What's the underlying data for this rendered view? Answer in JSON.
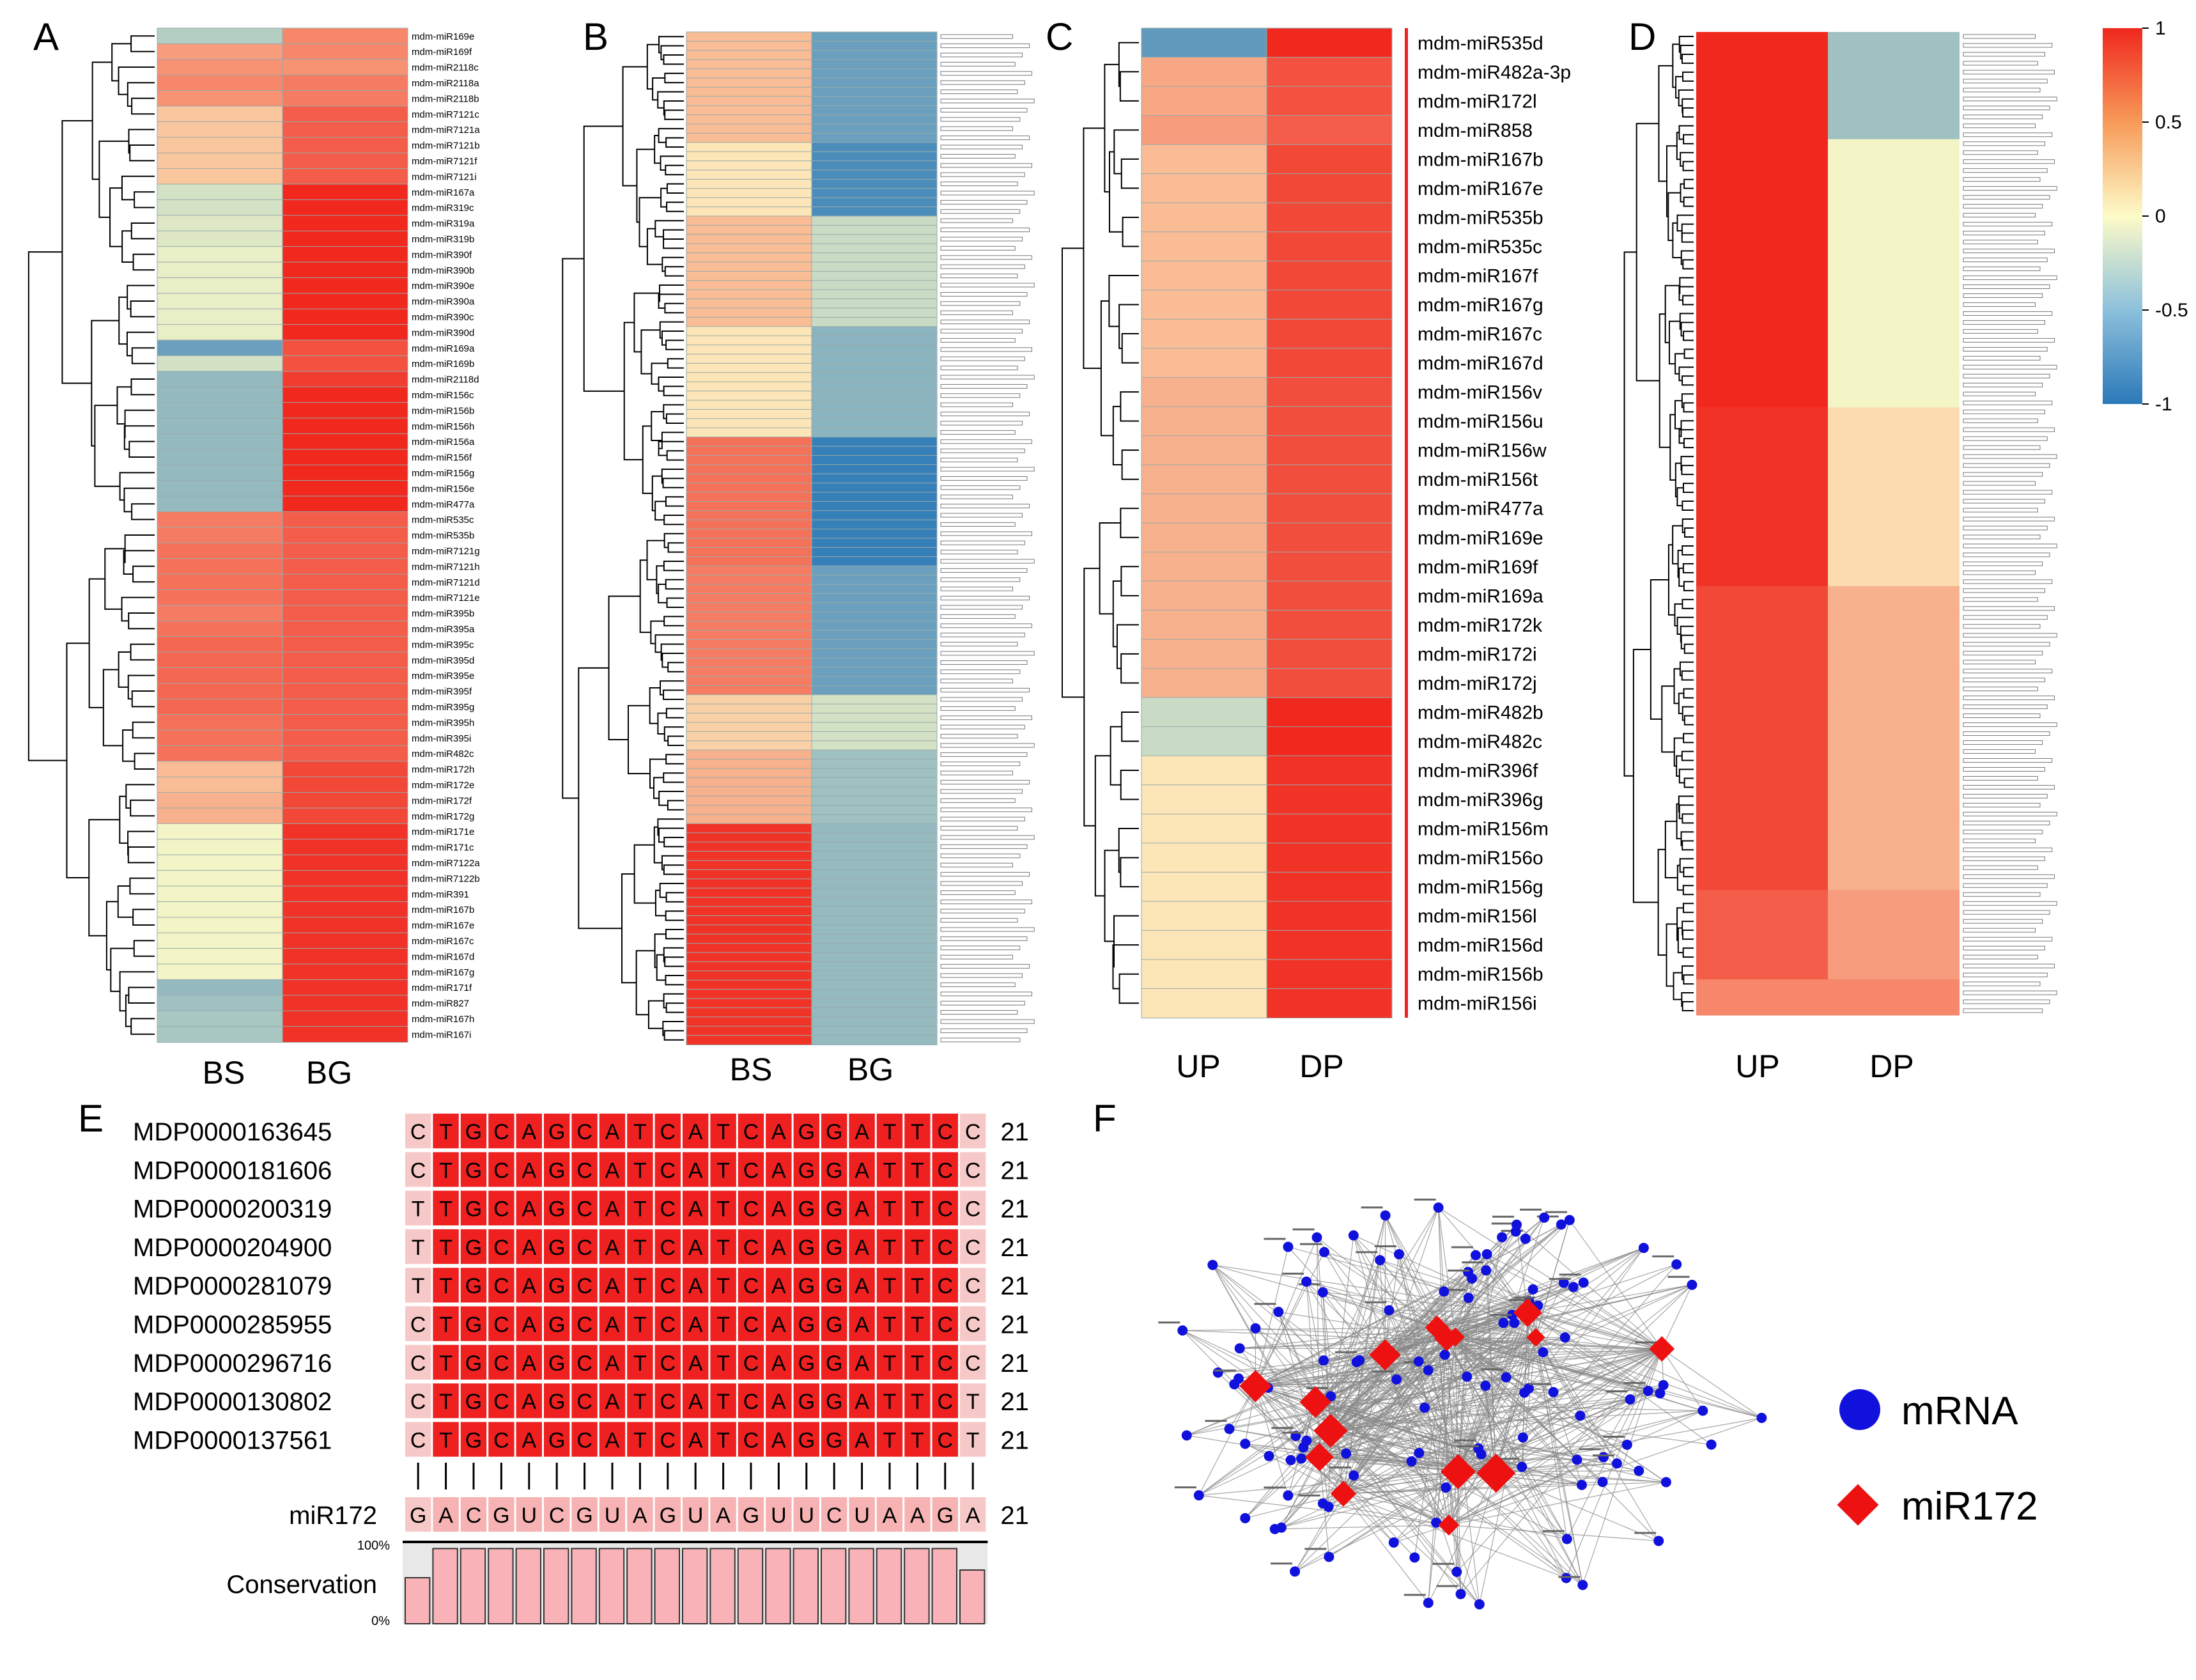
{
  "colors": {
    "scale_low": "#2b79b8",
    "scale_mid": "#fdfbc8",
    "scale_high": "#f0281e",
    "mrna_node": "#1111dd",
    "mir_node": "#ee1111",
    "edge": "#888888",
    "align_dark": "#ee2020",
    "align_light": "#f7c8c8"
  },
  "panels": {
    "A": {
      "letter": "A"
    },
    "B": {
      "letter": "B"
    },
    "C": {
      "letter": "C"
    },
    "D": {
      "letter": "D"
    },
    "E": {
      "letter": "E"
    },
    "F": {
      "letter": "F"
    }
  },
  "chart_data": [
    {
      "id": "A",
      "type": "heatmap",
      "columns": [
        "BS",
        "BG"
      ],
      "rows": [
        "mdm-miR169e",
        "mdm-miR169f",
        "mdm-miR2118c",
        "mdm-miR2118a",
        "mdm-miR2118b",
        "mdm-miR7121c",
        "mdm-miR7121a",
        "mdm-miR7121b",
        "mdm-miR7121f",
        "mdm-miR7121i",
        "mdm-miR167a",
        "mdm-miR319c",
        "mdm-miR319a",
        "mdm-miR319b",
        "mdm-miR390f",
        "mdm-miR390b",
        "mdm-miR390e",
        "mdm-miR390a",
        "mdm-miR390c",
        "mdm-miR390d",
        "mdm-miR169a",
        "mdm-miR169b",
        "mdm-miR2118d",
        "mdm-miR156c",
        "mdm-miR156b",
        "mdm-miR156h",
        "mdm-miR156a",
        "mdm-miR156f",
        "mdm-miR156g",
        "mdm-miR156e",
        "mdm-miR477a",
        "mdm-miR535c",
        "mdm-miR535b",
        "mdm-miR7121g",
        "mdm-miR7121h",
        "mdm-miR7121d",
        "mdm-miR7121e",
        "mdm-miR395b",
        "mdm-miR395a",
        "mdm-miR395c",
        "mdm-miR395d",
        "mdm-miR395e",
        "mdm-miR395f",
        "mdm-miR395g",
        "mdm-miR395h",
        "mdm-miR395i",
        "mdm-miR482c",
        "mdm-miR172h",
        "mdm-miR172e",
        "mdm-miR172f",
        "mdm-miR172g",
        "mdm-miR171e",
        "mdm-miR171c",
        "mdm-miR7122a",
        "mdm-miR7122b",
        "mdm-miR391",
        "mdm-miR167b",
        "mdm-miR167e",
        "mdm-miR167c",
        "mdm-miR167d",
        "mdm-miR167g",
        "mdm-miR171f",
        "mdm-miR827",
        "mdm-miR167h",
        "mdm-miR167i"
      ],
      "BS": [
        -0.35,
        0.45,
        0.5,
        0.55,
        0.5,
        0.25,
        0.25,
        0.25,
        0.25,
        0.25,
        -0.2,
        -0.2,
        -0.15,
        -0.15,
        -0.1,
        -0.1,
        -0.1,
        -0.1,
        -0.1,
        -0.1,
        -0.7,
        -0.2,
        -0.5,
        -0.5,
        -0.5,
        -0.5,
        -0.5,
        -0.5,
        -0.5,
        -0.5,
        -0.5,
        0.6,
        0.6,
        0.65,
        0.65,
        0.65,
        0.65,
        0.6,
        0.65,
        0.7,
        0.7,
        0.7,
        0.7,
        0.7,
        0.65,
        0.65,
        0.65,
        0.3,
        0.3,
        0.35,
        0.35,
        -0.05,
        -0.05,
        -0.05,
        -0.05,
        -0.05,
        -0.05,
        -0.05,
        -0.05,
        -0.05,
        -0.05,
        -0.5,
        -0.45,
        -0.4,
        -0.4
      ],
      "BG": [
        0.55,
        0.55,
        0.5,
        0.6,
        0.6,
        0.75,
        0.75,
        0.75,
        0.75,
        0.75,
        1.0,
        1.0,
        1.0,
        1.0,
        1.0,
        1.0,
        1.0,
        1.0,
        1.0,
        1.0,
        0.8,
        0.8,
        0.9,
        1.0,
        1.0,
        1.0,
        1.0,
        1.0,
        1.0,
        1.0,
        1.0,
        0.75,
        0.75,
        0.75,
        0.75,
        0.75,
        0.75,
        0.75,
        0.75,
        0.75,
        0.75,
        0.75,
        0.75,
        0.75,
        0.75,
        0.75,
        0.75,
        0.85,
        0.85,
        0.85,
        0.85,
        0.95,
        0.95,
        0.95,
        0.95,
        0.95,
        0.95,
        0.95,
        0.95,
        0.95,
        0.95,
        0.95,
        0.95,
        0.95,
        0.95
      ]
    },
    {
      "id": "B",
      "type": "heatmap",
      "columns": [
        "BS",
        "BG"
      ],
      "row_count": 110,
      "BS_segments": [
        [
          12,
          0.3
        ],
        [
          8,
          0.1
        ],
        [
          12,
          0.3
        ],
        [
          12,
          0.1
        ],
        [
          14,
          0.65
        ],
        [
          14,
          0.6
        ],
        [
          6,
          0.2
        ],
        [
          8,
          0.35
        ],
        [
          24,
          0.95
        ]
      ],
      "BG_segments": [
        [
          12,
          -0.7
        ],
        [
          8,
          -0.85
        ],
        [
          12,
          -0.25
        ],
        [
          12,
          -0.55
        ],
        [
          14,
          -0.95
        ],
        [
          14,
          -0.7
        ],
        [
          6,
          -0.2
        ],
        [
          8,
          -0.45
        ],
        [
          24,
          -0.5
        ]
      ]
    },
    {
      "id": "C",
      "type": "heatmap",
      "columns": [
        "UP",
        "DP"
      ],
      "rows": [
        "mdm-miR535d",
        "mdm-miR482a-3p",
        "mdm-miR172l",
        "mdm-miR858",
        "mdm-miR167b",
        "mdm-miR167e",
        "mdm-miR535b",
        "mdm-miR535c",
        "mdm-miR167f",
        "mdm-miR167g",
        "mdm-miR167c",
        "mdm-miR167d",
        "mdm-miR156v",
        "mdm-miR156u",
        "mdm-miR156w",
        "mdm-miR156t",
        "mdm-miR477a",
        "mdm-miR169e",
        "mdm-miR169f",
        "mdm-miR169a",
        "mdm-miR172k",
        "mdm-miR172i",
        "mdm-miR172j",
        "mdm-miR482b",
        "mdm-miR482c",
        "mdm-miR396f",
        "mdm-miR396g",
        "mdm-miR156m",
        "mdm-miR156o",
        "mdm-miR156g",
        "mdm-miR156l",
        "mdm-miR156d",
        "mdm-miR156b",
        "mdm-miR156i"
      ],
      "UP": [
        -0.75,
        0.4,
        0.4,
        0.45,
        0.3,
        0.3,
        0.3,
        0.3,
        0.3,
        0.3,
        0.3,
        0.3,
        0.35,
        0.35,
        0.35,
        0.35,
        0.35,
        0.35,
        0.35,
        0.35,
        0.35,
        0.35,
        0.35,
        -0.25,
        -0.25,
        0.1,
        0.1,
        0.1,
        0.1,
        0.1,
        0.1,
        0.1,
        0.1,
        0.1
      ],
      "DP": [
        1.0,
        0.8,
        0.8,
        0.75,
        0.85,
        0.85,
        0.85,
        0.85,
        0.85,
        0.85,
        0.85,
        0.85,
        0.82,
        0.82,
        0.82,
        0.82,
        0.82,
        0.82,
        0.82,
        0.82,
        0.82,
        0.82,
        0.82,
        1.0,
        1.0,
        0.95,
        0.95,
        0.95,
        0.95,
        0.95,
        0.95,
        0.95,
        0.95,
        0.95
      ]
    },
    {
      "id": "D",
      "type": "heatmap",
      "columns": [
        "UP",
        "DP"
      ],
      "row_count": 110,
      "UP_segments": [
        [
          12,
          1.0
        ],
        [
          30,
          1.0
        ],
        [
          20,
          0.95
        ],
        [
          34,
          0.85
        ],
        [
          10,
          0.75
        ],
        [
          4,
          0.55
        ]
      ],
      "DP_segments": [
        [
          12,
          -0.45
        ],
        [
          30,
          -0.05
        ],
        [
          20,
          0.15
        ],
        [
          34,
          0.35
        ],
        [
          10,
          0.45
        ],
        [
          4,
          0.55
        ]
      ]
    }
  ],
  "colorbar": {
    "ticks": [
      "1",
      "0.5",
      "0",
      "-0.5",
      "-1"
    ],
    "values": [
      1,
      0.5,
      0,
      -0.5,
      -1
    ]
  },
  "alignment": {
    "names": [
      "MDP0000163645",
      "MDP0000181606",
      "MDP0000200319",
      "MDP0000204900",
      "MDP0000281079",
      "MDP0000285955",
      "MDP0000296716",
      "MDP0000130802",
      "MDP0000137561"
    ],
    "first_chars": [
      "C",
      "C",
      "T",
      "T",
      "T",
      "C",
      "C",
      "C",
      "C"
    ],
    "core": [
      "T",
      "G",
      "C",
      "A",
      "G",
      "C",
      "A",
      "T",
      "C",
      "A",
      "T",
      "C",
      "A",
      "G",
      "G",
      "A",
      "T",
      "T",
      "C"
    ],
    "last_chars": [
      "C",
      "C",
      "C",
      "C",
      "C",
      "C",
      "C",
      "T",
      "T"
    ],
    "length_label": "21",
    "mir_name": "miR172",
    "mir_seq": [
      "G",
      "A",
      "C",
      "G",
      "U",
      "C",
      "G",
      "U",
      "A",
      "G",
      "U",
      "A",
      "G",
      "U",
      "U",
      "C",
      "U",
      "A",
      "A",
      "G",
      "A"
    ],
    "conservation_label": "Conservation",
    "pct_top": "100%",
    "pct_bottom": "0%",
    "conservation": [
      0.6,
      0.98,
      0.98,
      0.98,
      0.98,
      0.98,
      0.98,
      0.98,
      0.98,
      0.98,
      0.98,
      0.98,
      0.98,
      0.98,
      0.98,
      0.98,
      0.98,
      0.98,
      0.98,
      0.98,
      0.7
    ]
  },
  "network": {
    "legend_mrna": "mRNA",
    "legend_mir": "miR172",
    "mrna_count": 120,
    "mir_count": 15
  }
}
